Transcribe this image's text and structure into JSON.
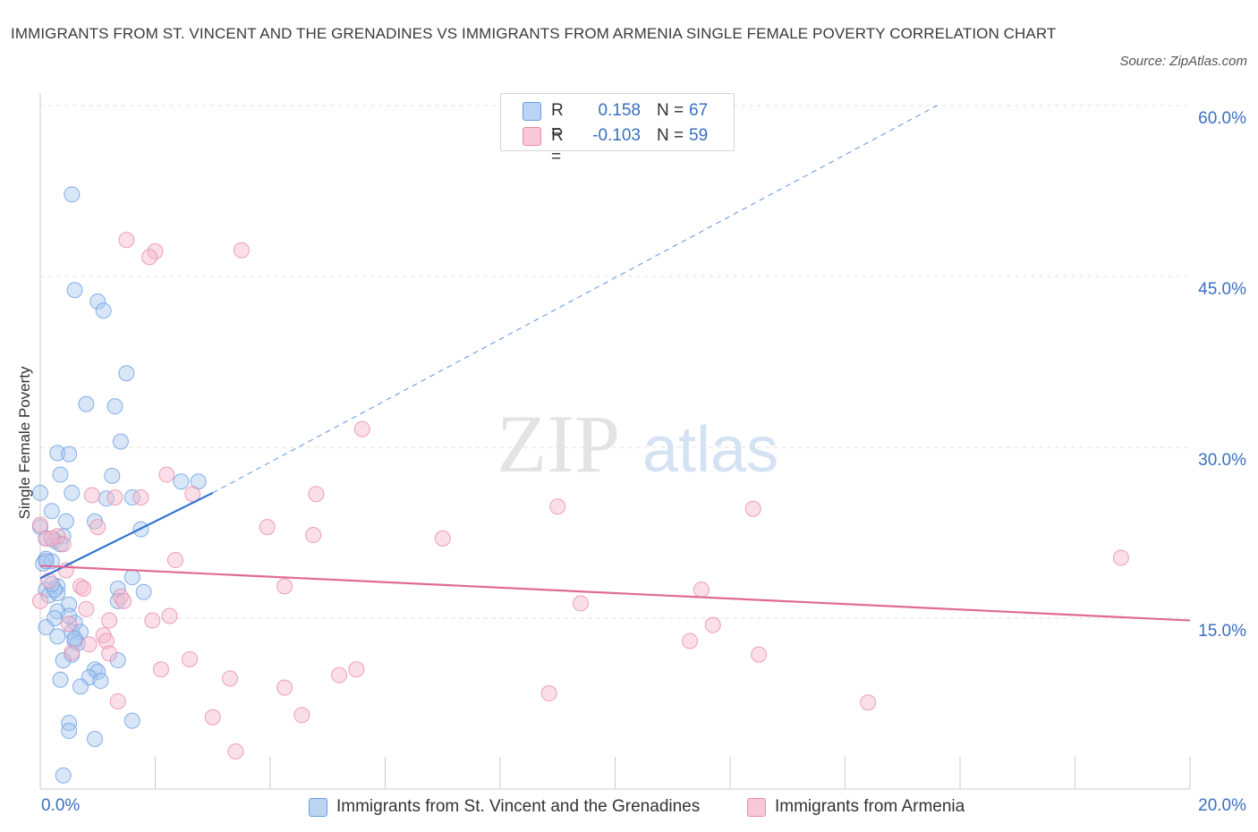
{
  "title": "IMMIGRANTS FROM ST. VINCENT AND THE GRENADINES VS IMMIGRANTS FROM ARMENIA SINGLE FEMALE POVERTY CORRELATION CHART",
  "source": "Source: ZipAtlas.com",
  "watermark": {
    "zip": "ZIP",
    "atlas": "atlas"
  },
  "legend": {
    "series1": {
      "r_label": "R =",
      "r_value": "0.158",
      "n_label": "N =",
      "n_value": "67"
    },
    "series2": {
      "r_label": "R =",
      "r_value": "-0.103",
      "n_label": "N =",
      "n_value": "59"
    }
  },
  "colors": {
    "series1_fill": "#a8c8f0",
    "series1_stroke": "#6a9de0",
    "series1_line": "#2e72d2",
    "series2_fill": "#f5b8cc",
    "series2_stroke": "#e88aaa",
    "series2_line": "#e06a95",
    "grid": "#e2e2e2",
    "tick_text": "#3a6fc0"
  },
  "chart_data": {
    "type": "scatter",
    "title": "IMMIGRANTS FROM ST. VINCENT AND THE GRENADINES VS IMMIGRANTS FROM ARMENIA SINGLE FEMALE POVERTY CORRELATION CHART",
    "xlabel": "",
    "ylabel": "Single Female Poverty",
    "xlim": [
      0,
      20
    ],
    "ylim": [
      0,
      60
    ],
    "x_ticks": [
      "0.0%",
      "20.0%"
    ],
    "y_ticks": [
      "15.0%",
      "30.0%",
      "45.0%",
      "60.0%"
    ],
    "y_tick_values": [
      15,
      30,
      45,
      60
    ],
    "grid": true,
    "legend_position": "top-center",
    "series": [
      {
        "name": "Immigrants from St. Vincent and the Grenadines",
        "r": 0.158,
        "n": 67,
        "trend": {
          "x": [
            0.0,
            3.0
          ],
          "y": [
            18.5,
            26.0
          ],
          "dashed_extension_to": [
            15.6,
            60.0
          ]
        },
        "points": [
          [
            0.55,
            52.2
          ],
          [
            0.6,
            43.8
          ],
          [
            1.0,
            42.8
          ],
          [
            1.1,
            42.0
          ],
          [
            1.5,
            36.5
          ],
          [
            0.8,
            33.8
          ],
          [
            1.3,
            33.6
          ],
          [
            1.4,
            30.5
          ],
          [
            0.3,
            29.5
          ],
          [
            0.5,
            29.4
          ],
          [
            0.35,
            27.6
          ],
          [
            1.25,
            27.5
          ],
          [
            2.45,
            27.0
          ],
          [
            2.75,
            27.0
          ],
          [
            0.0,
            26.0
          ],
          [
            0.55,
            26.0
          ],
          [
            1.15,
            25.5
          ],
          [
            1.6,
            25.6
          ],
          [
            0.2,
            24.4
          ],
          [
            0.45,
            23.5
          ],
          [
            0.95,
            23.5
          ],
          [
            1.75,
            22.8
          ],
          [
            0.0,
            23.0
          ],
          [
            0.1,
            22.0
          ],
          [
            0.25,
            21.8
          ],
          [
            0.4,
            22.2
          ],
          [
            0.35,
            21.5
          ],
          [
            0.1,
            20.2
          ],
          [
            0.05,
            19.8
          ],
          [
            0.2,
            20.0
          ],
          [
            1.6,
            18.6
          ],
          [
            0.3,
            17.8
          ],
          [
            0.1,
            17.5
          ],
          [
            0.15,
            17.0
          ],
          [
            0.3,
            17.2
          ],
          [
            0.25,
            17.5
          ],
          [
            1.35,
            17.6
          ],
          [
            1.8,
            17.3
          ],
          [
            0.5,
            16.2
          ],
          [
            1.35,
            16.5
          ],
          [
            0.3,
            15.6
          ],
          [
            0.25,
            15.0
          ],
          [
            0.6,
            14.6
          ],
          [
            0.1,
            14.2
          ],
          [
            0.55,
            13.8
          ],
          [
            0.7,
            13.8
          ],
          [
            0.3,
            13.4
          ],
          [
            0.6,
            13.0
          ],
          [
            0.65,
            12.8
          ],
          [
            0.55,
            11.8
          ],
          [
            0.4,
            11.3
          ],
          [
            1.35,
            11.3
          ],
          [
            0.95,
            10.5
          ],
          [
            1.0,
            10.3
          ],
          [
            0.85,
            9.8
          ],
          [
            0.35,
            9.6
          ],
          [
            1.05,
            9.5
          ],
          [
            0.7,
            9.0
          ],
          [
            0.5,
            5.8
          ],
          [
            1.6,
            6.0
          ],
          [
            0.5,
            5.1
          ],
          [
            0.95,
            4.4
          ],
          [
            0.4,
            1.2
          ],
          [
            0.1,
            20.0
          ],
          [
            0.5,
            15.2
          ],
          [
            0.2,
            18.0
          ],
          [
            0.6,
            13.2
          ]
        ]
      },
      {
        "name": "Immigrants from Armenia",
        "r": -0.103,
        "n": 59,
        "trend": {
          "x": [
            0.0,
            20.0
          ],
          "y": [
            19.6,
            14.8
          ]
        },
        "points": [
          [
            1.5,
            48.2
          ],
          [
            2.0,
            47.2
          ],
          [
            1.9,
            46.7
          ],
          [
            3.5,
            47.3
          ],
          [
            5.6,
            31.6
          ],
          [
            2.2,
            27.6
          ],
          [
            4.8,
            25.9
          ],
          [
            1.75,
            25.6
          ],
          [
            0.9,
            25.8
          ],
          [
            1.3,
            25.6
          ],
          [
            2.65,
            25.9
          ],
          [
            9.0,
            24.8
          ],
          [
            12.4,
            24.6
          ],
          [
            0.0,
            23.2
          ],
          [
            1.0,
            23.0
          ],
          [
            3.95,
            23.0
          ],
          [
            0.1,
            22.0
          ],
          [
            0.3,
            22.2
          ],
          [
            4.75,
            22.3
          ],
          [
            7.0,
            22.0
          ],
          [
            0.4,
            21.5
          ],
          [
            2.35,
            20.1
          ],
          [
            18.8,
            20.3
          ],
          [
            0.45,
            19.2
          ],
          [
            0.15,
            18.3
          ],
          [
            0.7,
            17.8
          ],
          [
            0.75,
            17.6
          ],
          [
            4.25,
            17.8
          ],
          [
            11.5,
            17.5
          ],
          [
            1.4,
            16.9
          ],
          [
            1.45,
            16.5
          ],
          [
            0.0,
            16.5
          ],
          [
            9.4,
            16.3
          ],
          [
            0.8,
            15.8
          ],
          [
            2.25,
            15.2
          ],
          [
            1.95,
            14.8
          ],
          [
            1.2,
            14.8
          ],
          [
            11.7,
            14.4
          ],
          [
            0.5,
            14.5
          ],
          [
            1.1,
            13.5
          ],
          [
            1.15,
            13.0
          ],
          [
            0.85,
            12.7
          ],
          [
            11.3,
            13.0
          ],
          [
            0.55,
            12.0
          ],
          [
            1.2,
            11.9
          ],
          [
            12.5,
            11.8
          ],
          [
            2.6,
            11.4
          ],
          [
            2.1,
            10.5
          ],
          [
            5.5,
            10.5
          ],
          [
            5.2,
            10.0
          ],
          [
            3.3,
            9.7
          ],
          [
            4.25,
            8.9
          ],
          [
            8.85,
            8.4
          ],
          [
            1.35,
            7.7
          ],
          [
            14.4,
            7.6
          ],
          [
            3.0,
            6.3
          ],
          [
            4.55,
            6.5
          ],
          [
            3.4,
            3.3
          ],
          [
            0.2,
            22.0
          ]
        ]
      }
    ]
  }
}
